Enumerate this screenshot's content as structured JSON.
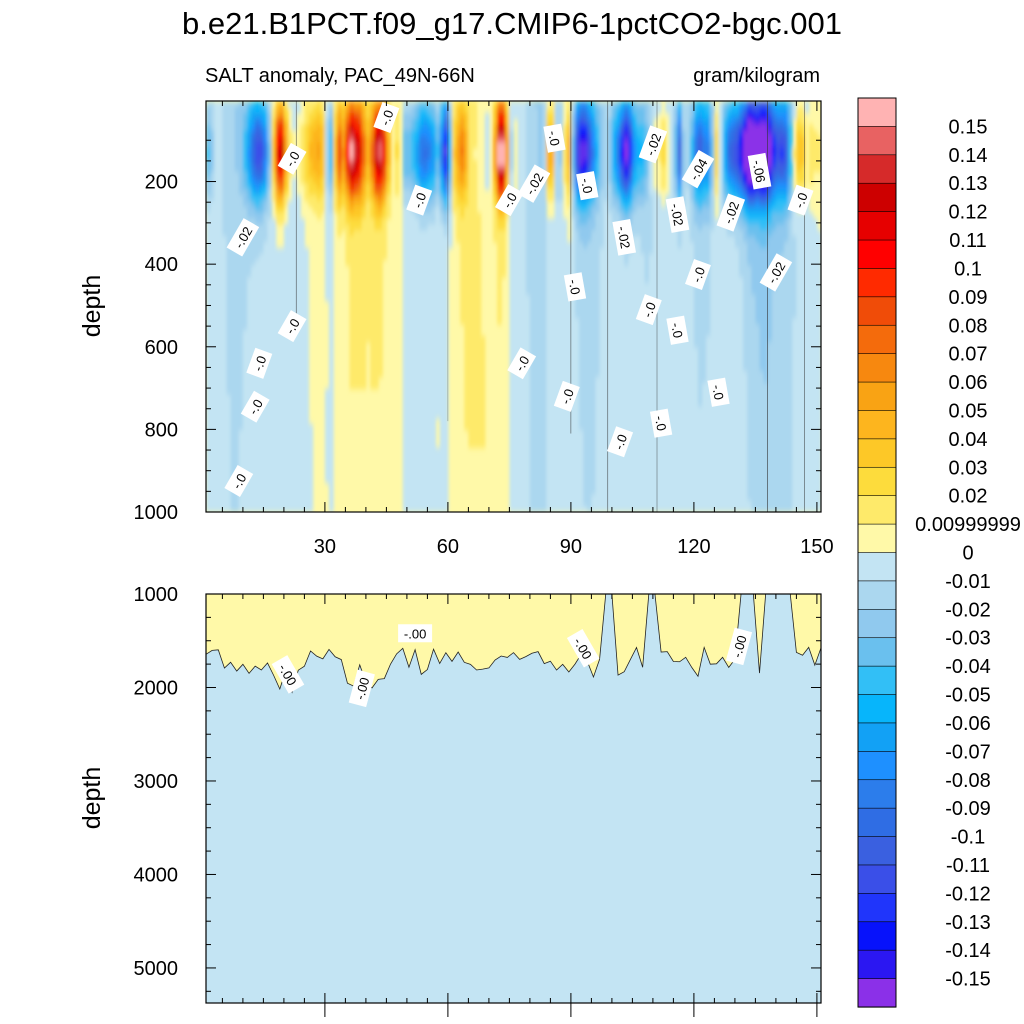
{
  "title": "b.e21.B1PCT.f09_g17.CMIP6-1pctCO2-bgc.001",
  "subtitle_left": "SALT anomaly, PAC_49N-66N",
  "subtitle_right": "gram/kilogram",
  "colors": {
    "positive": [
      "#FFF9A8",
      "#FEEA6A",
      "#FDDC3C",
      "#FDC827",
      "#FDB51E",
      "#F9A314",
      "#F7880F",
      "#F46B0C",
      "#F04C08",
      "#F12A04",
      "#FF1D00",
      "#E60000",
      "#CD0000",
      "#D62A2A",
      "#E86262",
      "#FFB3B3"
    ],
    "negative": [
      "#C3E4F3",
      "#ABD7EF",
      "#90C9EE",
      "#6AC0EE",
      "#32BFF6",
      "#07B5FB",
      "#12A1F5",
      "#1E90FF",
      "#2C7DEB",
      "#2F6DE4",
      "#3A60E0",
      "#3A4FE8",
      "#2035FB",
      "#0712FB",
      "#2B17F2",
      "#5F2DEC",
      "#8B30E8"
    ]
  },
  "chart_data": [
    {
      "type": "heatmap",
      "panel": "upper",
      "ylabel": "depth",
      "xlim": [
        1,
        151
      ],
      "ylim": [
        1000,
        5
      ],
      "x_ticks": [
        30,
        60,
        90,
        120,
        150
      ],
      "x_tick_labels": [
        "30",
        "60",
        "90",
        "120",
        "150"
      ],
      "y_ticks": [
        200,
        400,
        600,
        800,
        1000
      ],
      "y_tick_labels": [
        "200",
        "400",
        "600",
        "800",
        "1000"
      ],
      "contour_labels": [
        {
          "x": 45,
          "y": 45,
          "text": "-.0"
        },
        {
          "x": 22,
          "y": 145,
          "text": "-.0"
        },
        {
          "x": 86,
          "y": 95,
          "text": "-.0"
        },
        {
          "x": 110,
          "y": 110,
          "text": "-.02"
        },
        {
          "x": 121,
          "y": 170,
          "text": "-.04"
        },
        {
          "x": 136,
          "y": 175,
          "text": "-.06"
        },
        {
          "x": 146,
          "y": 245,
          "text": "-.0"
        },
        {
          "x": 81,
          "y": 205,
          "text": "-.02"
        },
        {
          "x": 94,
          "y": 210,
          "text": "-.0"
        },
        {
          "x": 53,
          "y": 245,
          "text": "-.0"
        },
        {
          "x": 75,
          "y": 245,
          "text": "-.0"
        },
        {
          "x": 116,
          "y": 280,
          "text": "-.02"
        },
        {
          "x": 129,
          "y": 275,
          "text": "-.02"
        },
        {
          "x": 10,
          "y": 335,
          "text": "-.02"
        },
        {
          "x": 103,
          "y": 335,
          "text": "-.02"
        },
        {
          "x": 121,
          "y": 425,
          "text": "-.0"
        },
        {
          "x": 140,
          "y": 420,
          "text": "-.02"
        },
        {
          "x": 91,
          "y": 455,
          "text": "-.0"
        },
        {
          "x": 109,
          "y": 510,
          "text": "-.0"
        },
        {
          "x": 22,
          "y": 550,
          "text": "-.0"
        },
        {
          "x": 116,
          "y": 560,
          "text": "-.0"
        },
        {
          "x": 14,
          "y": 640,
          "text": "-.0"
        },
        {
          "x": 78,
          "y": 640,
          "text": "-.0"
        },
        {
          "x": 126,
          "y": 710,
          "text": "-.0"
        },
        {
          "x": 89,
          "y": 720,
          "text": "-.0"
        },
        {
          "x": 13,
          "y": 745,
          "text": "-.0"
        },
        {
          "x": 112,
          "y": 785,
          "text": "-.0"
        },
        {
          "x": 102,
          "y": 830,
          "text": "-.0"
        },
        {
          "x": 9,
          "y": 925,
          "text": "-.0"
        }
      ]
    },
    {
      "type": "heatmap",
      "panel": "lower",
      "ylabel": "depth",
      "xlim": [
        1,
        151
      ],
      "ylim": [
        5375,
        1000
      ],
      "y_ticks": [
        1000,
        2000,
        3000,
        4000,
        5000
      ],
      "y_tick_labels": [
        "1000",
        "2000",
        "3000",
        "4000",
        "5000"
      ],
      "contour_labels": [
        {
          "x": 52,
          "y": 1420,
          "text": "-.00"
        },
        {
          "x": 21,
          "y": 1860,
          "text": "-.00"
        },
        {
          "x": 39,
          "y": 2010,
          "text": "-.00"
        },
        {
          "x": 93,
          "y": 1580,
          "text": "-.00"
        },
        {
          "x": 131,
          "y": 1560,
          "text": "-.00"
        }
      ]
    }
  ],
  "colorbar": {
    "labels": [
      "0.15",
      "0.14",
      "0.13",
      "0.12",
      "0.11",
      "0.1",
      "0.09",
      "0.08",
      "0.07",
      "0.06",
      "0.05",
      "0.04",
      "0.03",
      "0.02",
      "0.00999999",
      "0",
      "-0.01",
      "-0.02",
      "-0.03",
      "-0.04",
      "-0.05",
      "-0.06",
      "-0.07",
      "-0.08",
      "-0.09",
      "-0.1",
      "-0.11",
      "-0.12",
      "-0.13",
      "-0.14",
      "-0.15"
    ],
    "colors": [
      "#FFB3B3",
      "#E86262",
      "#D62A2A",
      "#CD0000",
      "#E60000",
      "#FF0000",
      "#FF2A00",
      "#F04C08",
      "#F46B0C",
      "#F7880F",
      "#F9A314",
      "#FDB51E",
      "#FDC827",
      "#FDDC3C",
      "#FEEA6A",
      "#FFF9A8",
      "#C3E4F3",
      "#ABD7EF",
      "#90C9EE",
      "#6AC0EE",
      "#32BFF6",
      "#07B5FB",
      "#12A1F5",
      "#1E90FF",
      "#2C7DEB",
      "#2F6DE4",
      "#3A60E0",
      "#3A4FE8",
      "#2035FB",
      "#0712FB",
      "#2B17F2",
      "#8B30E8"
    ]
  }
}
